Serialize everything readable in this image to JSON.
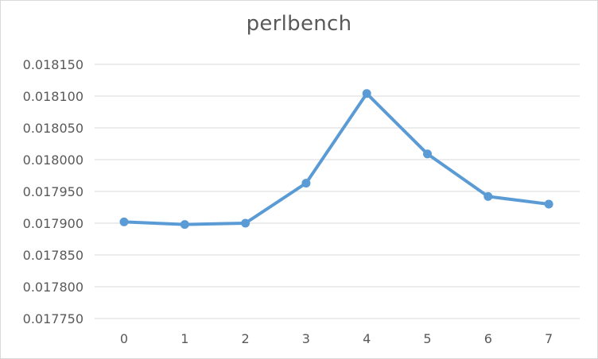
{
  "chart_data": {
    "type": "line",
    "title": "perlbench",
    "xlabel": "",
    "ylabel": "",
    "categories": [
      "0",
      "1",
      "2",
      "3",
      "4",
      "5",
      "6",
      "7"
    ],
    "series": [
      {
        "values": [
          0.017902,
          0.017898,
          0.0179,
          0.017963,
          0.018104,
          0.018009,
          0.017942,
          0.01793
        ]
      }
    ],
    "ylim": [
      0.01775,
      0.01815
    ],
    "yticks": [
      "0.017750",
      "0.017800",
      "0.017850",
      "0.017900",
      "0.017950",
      "0.018000",
      "0.018050",
      "0.018100",
      "0.018150"
    ],
    "grid": true,
    "legend": "none",
    "colors": {
      "line": "#5b9bd5",
      "grid": "#d9d9d9",
      "text": "#595959"
    }
  }
}
